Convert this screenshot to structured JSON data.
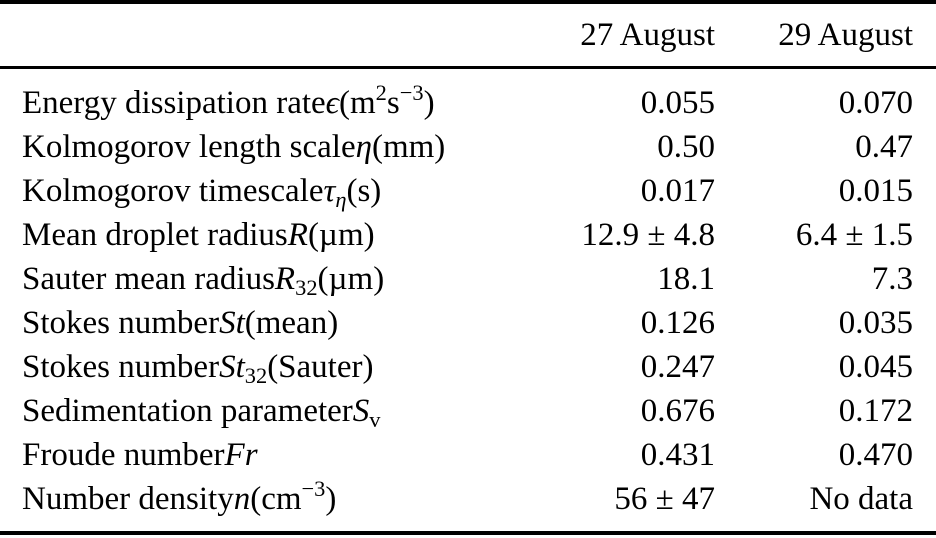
{
  "colors": {
    "text": "#000000",
    "background": "#ffffff",
    "rule": "#000000"
  },
  "table": {
    "columns": [
      "27 August",
      "29 August"
    ],
    "rows": [
      {
        "label": [
          {
            "t": "Energy dissipation rate "
          },
          {
            "t": "ϵ",
            "s": "i"
          },
          {
            "t": " (m"
          },
          {
            "t": "2",
            "s": "sup"
          },
          {
            "t": " s"
          },
          {
            "t": "−3",
            "s": "sup"
          },
          {
            "t": ")"
          }
        ],
        "values": [
          "0.055",
          "0.070"
        ]
      },
      {
        "label": [
          {
            "t": "Kolmogorov length scale "
          },
          {
            "t": "η",
            "s": "i"
          },
          {
            "t": " (mm)"
          }
        ],
        "values": [
          "0.50",
          "0.47"
        ]
      },
      {
        "label": [
          {
            "t": "Kolmogorov timescale "
          },
          {
            "t": "τ",
            "s": "i"
          },
          {
            "t": "η",
            "s": "isub"
          },
          {
            "t": " (s)"
          }
        ],
        "values": [
          "0.017",
          "0.015"
        ]
      },
      {
        "label": [
          {
            "t": "Mean droplet radius "
          },
          {
            "t": "R",
            "s": "i"
          },
          {
            "t": " (µm)"
          }
        ],
        "values": [
          "12.9 ± 4.8",
          "6.4 ± 1.5"
        ]
      },
      {
        "label": [
          {
            "t": "Sauter mean radius "
          },
          {
            "t": "R",
            "s": "i"
          },
          {
            "t": "32",
            "s": "sub"
          },
          {
            "t": " (µm)"
          }
        ],
        "values": [
          "18.1",
          "7.3"
        ]
      },
      {
        "label": [
          {
            "t": "Stokes number "
          },
          {
            "t": "St",
            "s": "i"
          },
          {
            "t": " (mean)"
          }
        ],
        "values": [
          "0.126",
          "0.035"
        ]
      },
      {
        "label": [
          {
            "t": "Stokes number "
          },
          {
            "t": "St",
            "s": "i"
          },
          {
            "t": "32",
            "s": "sub"
          },
          {
            "t": " (Sauter)"
          }
        ],
        "values": [
          "0.247",
          "0.045"
        ]
      },
      {
        "label": [
          {
            "t": "Sedimentation parameter "
          },
          {
            "t": "S",
            "s": "i"
          },
          {
            "t": "v",
            "s": "sub"
          }
        ],
        "values": [
          "0.676",
          "0.172"
        ]
      },
      {
        "label": [
          {
            "t": "Froude number "
          },
          {
            "t": "Fr",
            "s": "i"
          }
        ],
        "values": [
          "0.431",
          "0.470"
        ]
      },
      {
        "label": [
          {
            "t": "Number density "
          },
          {
            "t": "n",
            "s": "i"
          },
          {
            "t": " (cm"
          },
          {
            "t": "−3",
            "s": "sup"
          },
          {
            "t": ")"
          }
        ],
        "values": [
          "56 ± 47",
          "No data"
        ]
      }
    ]
  }
}
